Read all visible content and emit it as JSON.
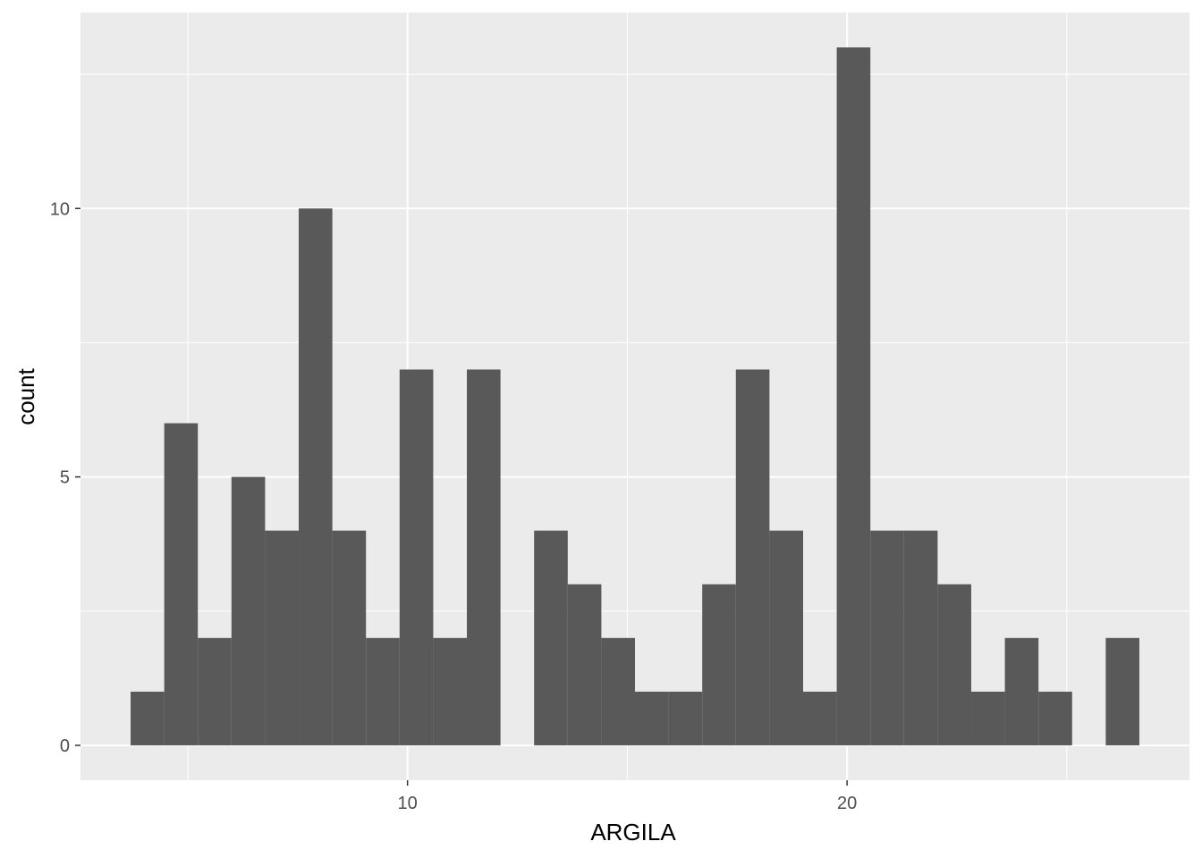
{
  "chart_data": {
    "type": "bar",
    "subtype": "histogram",
    "xlabel": "ARGILA",
    "ylabel": "count",
    "bin_width": 0.765,
    "bins": [
      {
        "x0": 3.7,
        "count": 1
      },
      {
        "x0": 4.465,
        "count": 6
      },
      {
        "x0": 5.23,
        "count": 2
      },
      {
        "x0": 5.995,
        "count": 5
      },
      {
        "x0": 6.76,
        "count": 4
      },
      {
        "x0": 7.525,
        "count": 10
      },
      {
        "x0": 8.29,
        "count": 4
      },
      {
        "x0": 9.055,
        "count": 2
      },
      {
        "x0": 9.82,
        "count": 7
      },
      {
        "x0": 10.585,
        "count": 2
      },
      {
        "x0": 11.35,
        "count": 7
      },
      {
        "x0": 12.115,
        "count": 0
      },
      {
        "x0": 12.88,
        "count": 4
      },
      {
        "x0": 13.645,
        "count": 3
      },
      {
        "x0": 14.41,
        "count": 2
      },
      {
        "x0": 15.175,
        "count": 1
      },
      {
        "x0": 15.94,
        "count": 1
      },
      {
        "x0": 16.705,
        "count": 3
      },
      {
        "x0": 17.47,
        "count": 7
      },
      {
        "x0": 18.235,
        "count": 4
      },
      {
        "x0": 19.0,
        "count": 1
      },
      {
        "x0": 19.765,
        "count": 13
      },
      {
        "x0": 20.53,
        "count": 4
      },
      {
        "x0": 21.295,
        "count": 4
      },
      {
        "x0": 22.06,
        "count": 3
      },
      {
        "x0": 22.825,
        "count": 1
      },
      {
        "x0": 23.59,
        "count": 2
      },
      {
        "x0": 24.355,
        "count": 1
      },
      {
        "x0": 25.12,
        "count": 0
      },
      {
        "x0": 25.885,
        "count": 2
      }
    ],
    "xlim": [
      2.56,
      27.79
    ],
    "ylim": [
      -0.65,
      13.65
    ],
    "x_ticks": [
      10,
      20
    ],
    "x_tick_labels": [
      "10",
      "20"
    ],
    "x_minor_ticks": [
      5,
      15,
      25
    ],
    "y_ticks": [
      0,
      5,
      10
    ],
    "y_tick_labels": [
      "0",
      "5",
      "10"
    ],
    "y_minor_ticks": [
      2.5,
      7.5,
      12.5
    ],
    "grid": true,
    "legend": "none",
    "colors": {
      "bar_fill": "#595959",
      "panel_background": "#ebebeb",
      "grid_line": "#ffffff",
      "tick_text": "#4d4d4d",
      "tick_mark": "#333333"
    }
  }
}
